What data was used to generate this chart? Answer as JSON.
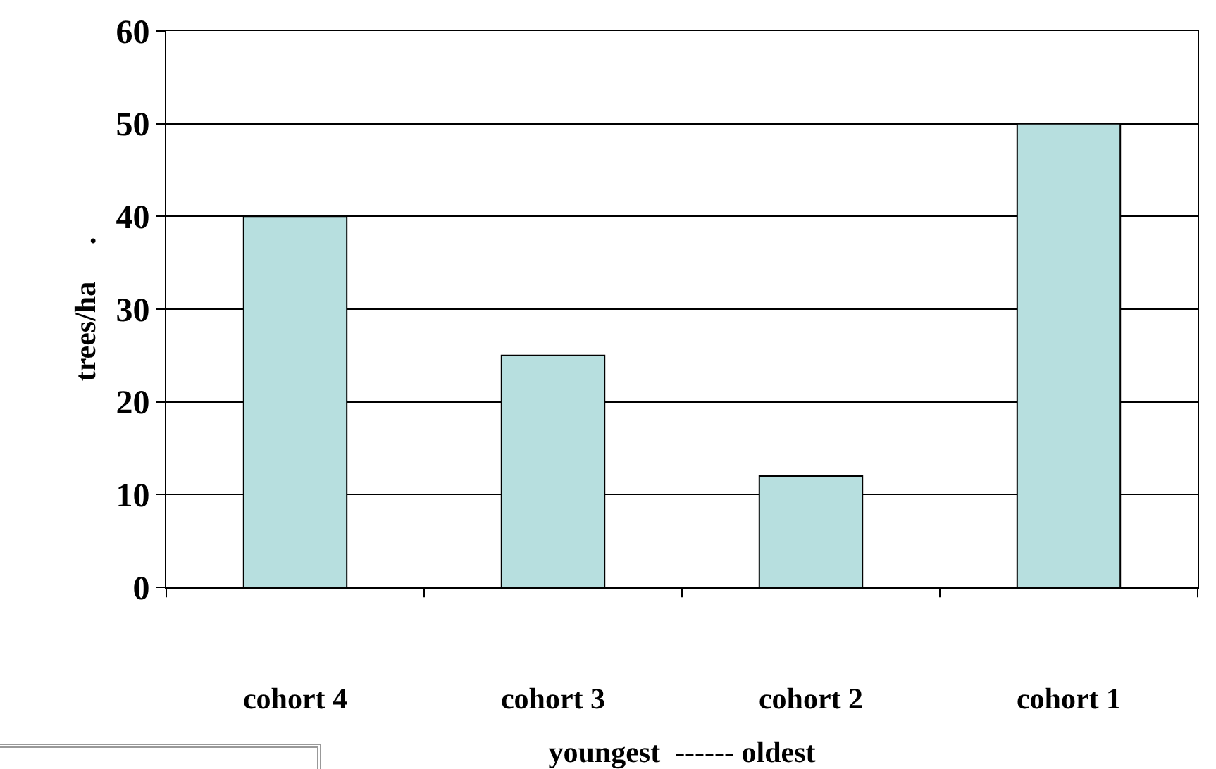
{
  "chart_data": {
    "type": "bar",
    "categories": [
      "cohort 4",
      "cohort 3",
      "cohort 2",
      "cohort 1"
    ],
    "values": [
      40,
      25,
      12,
      50
    ],
    "color": "#b7dfdf",
    "ylabel": "trees/ha     .",
    "xlabel": "youngest  ------ oldest",
    "ylim": [
      0,
      60
    ],
    "yticks": [
      0,
      10,
      20,
      30,
      40,
      50,
      60
    ],
    "grid": "y",
    "legend": false
  }
}
